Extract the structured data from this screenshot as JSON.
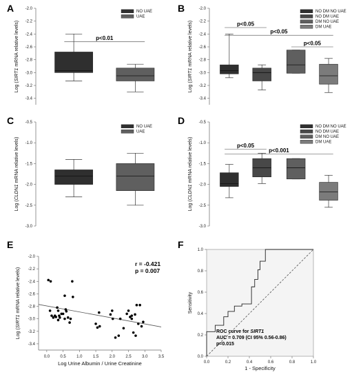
{
  "colors": {
    "nodm_nouae": "#2f2f2f",
    "nodm_uae": "#484848",
    "dm_nouae": "#5f5f5f",
    "dm_uae": "#7b7b7b",
    "points": "#000000",
    "roc_fill": "#f4f4f4"
  },
  "chart_data": [
    {
      "panel": "A",
      "type": "box",
      "ylabel_pre": "Log (",
      "ylabel_gene": "SIRT1",
      "ylabel_post": " mRNA relative levels)",
      "ylim": [
        -3.5,
        -2.0
      ],
      "yticks": [
        -2.0,
        -2.2,
        -2.4,
        -2.6,
        -2.8,
        -3.0,
        -3.2,
        -3.4
      ],
      "yticklabels": [
        "-2.0",
        "-2.2",
        "-2.4",
        "-2.6",
        "-2.8",
        "-3.0",
        "-3.2",
        "-3.4"
      ],
      "legend": [
        "NO UAE",
        "UAE"
      ],
      "groups": [
        {
          "legend_index": 0,
          "color": "nodm_nouae",
          "min": -3.13,
          "q1": -3.0,
          "median": -2.97,
          "q3": -2.68,
          "max": -2.4
        },
        {
          "legend_index": 1,
          "color": "dm_nouae",
          "min": -3.3,
          "q1": -3.13,
          "median": -3.05,
          "q3": -2.93,
          "max": -2.87
        }
      ],
      "significance": [
        {
          "text": "p<0.01",
          "from": 0,
          "to": 1,
          "y": -2.52
        }
      ]
    },
    {
      "panel": "B",
      "type": "box",
      "ylabel_pre": "Log (",
      "ylabel_gene": "SIRT1",
      "ylabel_post": " mRNA relative levels)",
      "ylim": [
        -3.5,
        -2.0
      ],
      "yticks": [
        -2.0,
        -2.2,
        -2.4,
        -2.6,
        -2.8,
        -3.0,
        -3.2,
        -3.4
      ],
      "yticklabels": [
        "-2.0",
        "-2.2",
        "-2.4",
        "-2.6",
        "-2.8",
        "-3.0",
        "-3.2",
        "-3.4"
      ],
      "legend": [
        "NO DM NO UAE",
        "NO DM UAE",
        "DM NO UAE",
        "DM UAE"
      ],
      "groups": [
        {
          "legend_index": 0,
          "color": "nodm_nouae",
          "min": -3.08,
          "q1": -3.02,
          "median": -2.97,
          "q3": -2.88,
          "max": -2.4
        },
        {
          "legend_index": 1,
          "color": "nodm_uae",
          "min": -3.27,
          "q1": -3.13,
          "median": -3.0,
          "q3": -2.93,
          "max": -2.88
        },
        {
          "legend_index": 2,
          "color": "dm_nouae",
          "min": -3.01,
          "q1": -3.01,
          "median": -2.88,
          "q3": -2.65,
          "max": -2.65
        },
        {
          "legend_index": 3,
          "color": "dm_uae",
          "min": -3.31,
          "q1": -3.18,
          "median": -3.05,
          "q3": -2.87,
          "max": -2.78
        }
      ],
      "significance": [
        {
          "text": "p<0.05",
          "from": 0,
          "to": 1,
          "y": -2.3
        },
        {
          "text": "p<0.05",
          "from": 0,
          "to": 3,
          "y": -2.42
        },
        {
          "text": "p<0.05",
          "from": 2,
          "to": 3,
          "y": -2.6
        }
      ]
    },
    {
      "panel": "C",
      "type": "box",
      "ylabel_pre": "Log (",
      "ylabel_gene": "CLDN1",
      "ylabel_post": " mRNA relative levels)",
      "ylim": [
        -3.0,
        -0.5
      ],
      "yticks": [
        -0.5,
        -1.0,
        -1.5,
        -2.0,
        -2.5,
        -3.0
      ],
      "yticklabels": [
        "-0.5",
        "-1.0",
        "-1.5",
        "-2.0",
        "-2.5",
        "-3.0"
      ],
      "legend": [
        "NO UAE",
        "UAE"
      ],
      "groups": [
        {
          "legend_index": 0,
          "color": "nodm_nouae",
          "min": -2.3,
          "q1": -2.0,
          "median": -1.8,
          "q3": -1.65,
          "max": -1.4
        },
        {
          "legend_index": 1,
          "color": "dm_nouae",
          "min": -2.5,
          "q1": -2.15,
          "median": -1.8,
          "q3": -1.5,
          "max": -1.25
        }
      ],
      "significance": []
    },
    {
      "panel": "D",
      "type": "box",
      "ylabel_pre": "Log (",
      "ylabel_gene": "CLDN1",
      "ylabel_post": " mRNA relative levels)",
      "ylim": [
        -3.0,
        -0.5
      ],
      "yticks": [
        -0.5,
        -1.0,
        -1.5,
        -2.0,
        -2.5,
        -3.0
      ],
      "yticklabels": [
        "-0.5",
        "-1.0",
        "-1.5",
        "-2.0",
        "-2.5",
        "-3.0"
      ],
      "legend": [
        "NO DM NO UAE",
        "NO DM UAE",
        "DM NO UAE",
        "DM UAE"
      ],
      "groups": [
        {
          "legend_index": 0,
          "color": "nodm_nouae",
          "min": -2.32,
          "q1": -2.05,
          "median": -1.98,
          "q3": -1.72,
          "max": -1.52
        },
        {
          "legend_index": 1,
          "color": "nodm_uae",
          "min": -1.98,
          "q1": -1.82,
          "median": -1.6,
          "q3": -1.38,
          "max": -1.25
        },
        {
          "legend_index": 2,
          "color": "dm_nouae",
          "min": -1.87,
          "q1": -1.87,
          "median": -1.6,
          "q3": -1.38,
          "max": -1.38
        },
        {
          "legend_index": 3,
          "color": "dm_uae",
          "min": -2.55,
          "q1": -2.38,
          "median": -2.18,
          "q3": -1.95,
          "max": -1.78
        }
      ],
      "significance": [
        {
          "text": "p<0.05",
          "from": 0,
          "to": 1,
          "y": -1.15
        },
        {
          "text": "p<0.001",
          "from": 0,
          "to": 3,
          "y": -1.27
        }
      ]
    },
    {
      "panel": "E",
      "type": "scatter",
      "xlabel": "Log Urine Albumin / Urine Creatinine",
      "ylabel_pre": "Log (",
      "ylabel_gene": "SIRT1",
      "ylabel_post": " mRNA relative levels)",
      "xlim": [
        -0.25,
        3.5
      ],
      "ylim": [
        -3.5,
        -2.0
      ],
      "xticks": [
        0.0,
        0.5,
        1.0,
        1.5,
        2.0,
        2.5,
        3.0,
        3.5
      ],
      "xticklabels": [
        "0.0",
        "0.5",
        "1.0",
        "1.5",
        "2.0",
        "2.5",
        "3.0",
        "3.5"
      ],
      "yticks": [
        -2.0,
        -2.2,
        -2.4,
        -2.6,
        -2.8,
        -3.0,
        -3.2,
        -3.4
      ],
      "yticklabels": [
        "-2.0",
        "-2.2",
        "-2.4",
        "-2.6",
        "-2.8",
        "-3.0",
        "-3.2",
        "-3.4"
      ],
      "annotation": [
        "r = -0.421",
        "p = 0.007"
      ],
      "regression": {
        "x": [
          -0.25,
          3.5
        ],
        "y": [
          -2.77,
          -3.13
        ]
      },
      "points": [
        [
          0.05,
          -2.38
        ],
        [
          0.12,
          -2.4
        ],
        [
          0.1,
          -2.87
        ],
        [
          0.15,
          -2.95
        ],
        [
          0.2,
          -2.98
        ],
        [
          0.25,
          -2.95
        ],
        [
          0.28,
          -2.97
        ],
        [
          0.32,
          -2.82
        ],
        [
          0.35,
          -2.87
        ],
        [
          0.38,
          -2.95
        ],
        [
          0.4,
          -2.98
        ],
        [
          0.45,
          -2.92
        ],
        [
          0.5,
          -2.92
        ],
        [
          0.55,
          -2.63
        ],
        [
          0.58,
          -2.85
        ],
        [
          0.6,
          -2.88
        ],
        [
          0.65,
          -2.98
        ],
        [
          0.7,
          -3.06
        ],
        [
          0.73,
          -3.0
        ],
        [
          0.78,
          -2.4
        ],
        [
          0.8,
          -2.65
        ],
        [
          0.35,
          -3.02
        ],
        [
          0.55,
          -3.0
        ],
        [
          1.5,
          -3.08
        ],
        [
          1.55,
          -3.14
        ],
        [
          1.6,
          -2.9
        ],
        [
          1.62,
          -3.12
        ],
        [
          1.95,
          -2.93
        ],
        [
          2.0,
          -2.87
        ],
        [
          2.02,
          -3.0
        ],
        [
          2.1,
          -3.3
        ],
        [
          2.2,
          -3.27
        ],
        [
          2.25,
          -3.0
        ],
        [
          2.35,
          -3.15
        ],
        [
          2.45,
          -2.92
        ],
        [
          2.5,
          -2.87
        ],
        [
          2.55,
          -2.97
        ],
        [
          2.6,
          -2.95
        ],
        [
          2.65,
          -3.22
        ],
        [
          2.7,
          -2.93
        ],
        [
          2.75,
          -2.78
        ],
        [
          2.8,
          -3.08
        ],
        [
          2.85,
          -2.78
        ],
        [
          2.9,
          -3.12
        ],
        [
          2.95,
          -3.05
        ],
        [
          2.72,
          -3.27
        ],
        [
          2.6,
          -3.0
        ]
      ]
    },
    {
      "panel": "F",
      "type": "line",
      "xlabel": "1 - Specificity",
      "ylabel": "Sensitivity",
      "xlim": [
        0.0,
        1.0
      ],
      "ylim": [
        0.0,
        1.0
      ],
      "xticks": [
        0.0,
        0.2,
        0.4,
        0.6,
        0.8,
        1.0
      ],
      "xticklabels": [
        "0.0",
        "0.2",
        "0.4",
        "0.6",
        "0.8",
        "1.0"
      ],
      "yticks": [
        0.0,
        0.2,
        0.4,
        0.6,
        0.8,
        1.0
      ],
      "yticklabels": [
        "0.0",
        "0.2",
        "0.4",
        "0.6",
        "0.8",
        "1.0"
      ],
      "annotation_line1_pre": "ROC curve for ",
      "annotation_line1_gene": "SIRT1",
      "annotation_line2": "AUC = 0.709 (CI 95% 0.56-0.86)",
      "annotation_line3": "p=0.015",
      "reference_line": {
        "x": [
          0.0,
          1.0
        ],
        "y": [
          0.0,
          1.0
        ]
      },
      "roc_curve": {
        "x": [
          0.0,
          0.0,
          0.08,
          0.08,
          0.16,
          0.16,
          0.2,
          0.2,
          0.26,
          0.26,
          0.33,
          0.33,
          0.42,
          0.42,
          0.45,
          0.45,
          0.48,
          0.48,
          0.5,
          0.5,
          0.55,
          0.55,
          1.0
        ],
        "y": [
          0.0,
          0.23,
          0.23,
          0.29,
          0.29,
          0.37,
          0.37,
          0.42,
          0.42,
          0.47,
          0.47,
          0.49,
          0.49,
          0.65,
          0.65,
          0.72,
          0.72,
          0.81,
          0.81,
          0.89,
          0.89,
          1.0,
          1.0
        ]
      }
    }
  ]
}
